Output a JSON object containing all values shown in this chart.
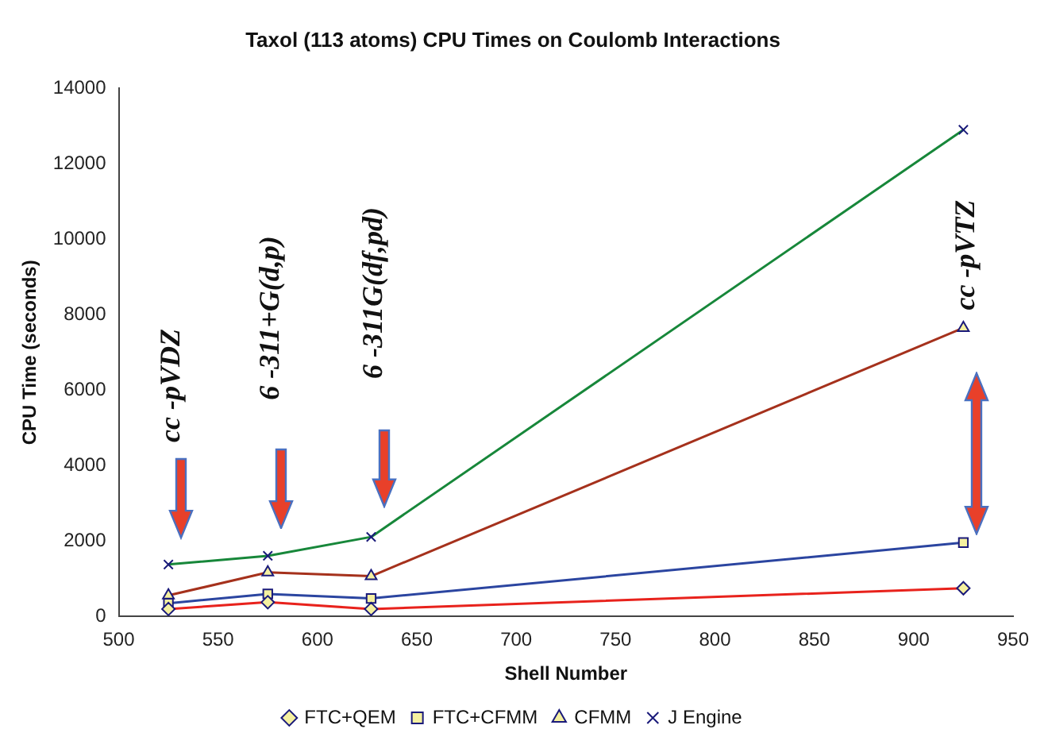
{
  "chart_data": {
    "type": "line",
    "title": "Taxol (113 atoms) CPU Times on Coulomb Interactions",
    "xlabel": "Shell Number",
    "ylabel": "CPU Time (seconds)",
    "x": [
      525,
      575,
      627,
      925
    ],
    "series": [
      {
        "name": "FTC+QEM",
        "color": "#e8221c",
        "marker": "diamond",
        "values": [
          200,
          380,
          200,
          750
        ]
      },
      {
        "name": "FTC+CFMM",
        "color": "#2b45a0",
        "marker": "square",
        "values": [
          350,
          600,
          480,
          1960
        ]
      },
      {
        "name": "CFMM",
        "color": "#a5311c",
        "marker": "triangle",
        "values": [
          560,
          1170,
          1070,
          7650
        ]
      },
      {
        "name": "J Engine",
        "color": "#17873a",
        "marker": "cross",
        "values": [
          1380,
          1610,
          2110,
          12900
        ]
      }
    ],
    "xlim": [
      500,
      950
    ],
    "xticks": [
      500,
      550,
      600,
      650,
      700,
      750,
      800,
      850,
      900,
      950
    ],
    "ylim": [
      0,
      14000
    ],
    "yticks": [
      0,
      2000,
      4000,
      6000,
      8000,
      10000,
      12000,
      14000
    ],
    "grid": false,
    "legend": "bottom",
    "annotations": [
      "cc -pVDZ",
      "6 -311+G(d,p)",
      "6 -311G(df,pd)",
      "cc -pVTZ"
    ]
  }
}
